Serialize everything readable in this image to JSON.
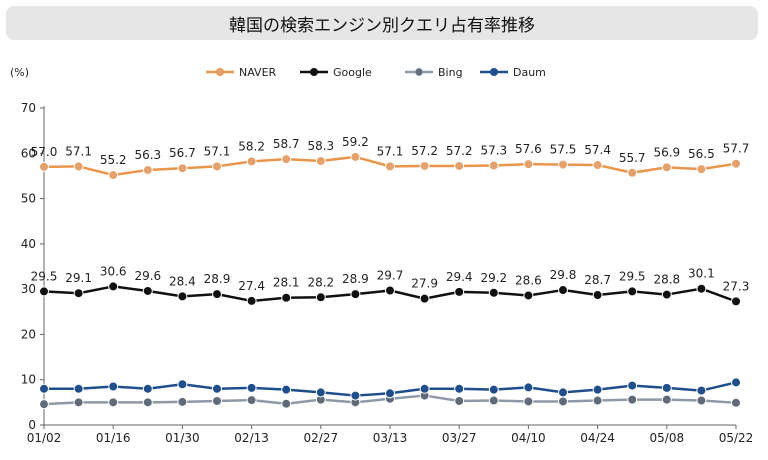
{
  "title": "韓国の検索エンジン別クエリ占有率推移",
  "chart_data": {
    "type": "line",
    "title": "韓国の検索エンジン別クエリ占有率推移",
    "unit_label": "(%)",
    "ylim": [
      0,
      70
    ],
    "yticks": [
      0,
      10,
      20,
      30,
      40,
      50,
      60,
      70
    ],
    "x_tick_labels": [
      "01/02",
      "01/16",
      "01/30",
      "02/13",
      "02/27",
      "03/13",
      "03/27",
      "04/10",
      "04/24",
      "05/08",
      "05/22"
    ],
    "x_tick_positions": [
      0,
      2,
      4,
      6,
      8,
      10,
      12,
      14,
      16,
      18,
      20
    ],
    "legend_position": "top-center",
    "grid": false,
    "series": [
      {
        "name": "NAVER",
        "color": "#e9954a",
        "marker": "#e6a16a",
        "show_labels": true,
        "values": [
          57.0,
          57.1,
          55.2,
          56.3,
          56.7,
          57.1,
          58.2,
          58.7,
          58.3,
          59.2,
          57.1,
          57.2,
          57.2,
          57.3,
          57.6,
          57.5,
          57.4,
          55.7,
          56.9,
          56.5,
          57.7
        ],
        "labels": [
          "57.0",
          "57.1",
          "55.2",
          "56.3",
          "56.7",
          "57.1",
          "58.2",
          "58.7",
          "58.3",
          "59.2",
          "57.1",
          "57.2",
          "57.2",
          "57.3",
          "57.6",
          "57.5",
          "57.4",
          "55.7",
          "56.9",
          "56.5",
          "57.7"
        ]
      },
      {
        "name": "Google",
        "color": "#111111",
        "marker": "#111111",
        "show_labels": true,
        "values": [
          29.5,
          29.1,
          30.6,
          29.6,
          28.4,
          28.9,
          27.4,
          28.1,
          28.2,
          28.9,
          29.7,
          27.9,
          29.4,
          29.2,
          28.6,
          29.8,
          28.7,
          29.5,
          28.8,
          30.1,
          27.3
        ],
        "labels": [
          "29.5",
          "29.1",
          "30.6",
          "29.6",
          "28.4",
          "28.9",
          "27.4",
          "28.1",
          "28.2",
          "28.9",
          "29.7",
          "27.9",
          "29.4",
          "29.2",
          "28.6",
          "29.8",
          "28.7",
          "29.5",
          "28.8",
          "30.1",
          "27.3"
        ]
      },
      {
        "name": "Bing",
        "color": "#8d99a6",
        "marker": "#5f6b78",
        "show_labels": false,
        "values": [
          4.6,
          5.0,
          5.0,
          5.0,
          5.1,
          5.3,
          5.5,
          4.7,
          5.6,
          5.0,
          5.8,
          6.5,
          5.3,
          5.4,
          5.2,
          5.2,
          5.4,
          5.6,
          5.6,
          5.4,
          4.9
        ]
      },
      {
        "name": "Daum",
        "color": "#1f4e8c",
        "marker": "#1f4e8c",
        "show_labels": false,
        "values": [
          8.0,
          8.0,
          8.5,
          8.0,
          9.0,
          8.0,
          8.2,
          7.8,
          7.2,
          6.5,
          7.0,
          8.0,
          8.0,
          7.8,
          8.3,
          7.2,
          7.8,
          8.7,
          8.2,
          7.6,
          9.4
        ]
      }
    ]
  }
}
